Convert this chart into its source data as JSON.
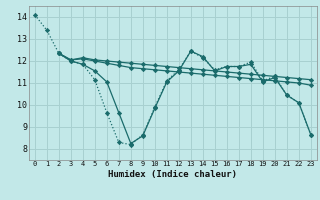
{
  "xlabel": "Humidex (Indice chaleur)",
  "bg_color": "#c2e8e8",
  "grid_color": "#a8d0d0",
  "line_color": "#1a6b6b",
  "xlim": [
    -0.5,
    23.5
  ],
  "ylim": [
    7.5,
    14.5
  ],
  "xticks": [
    0,
    1,
    2,
    3,
    4,
    5,
    6,
    7,
    8,
    9,
    10,
    11,
    12,
    13,
    14,
    15,
    16,
    17,
    18,
    19,
    20,
    21,
    22,
    23
  ],
  "yticks": [
    8,
    9,
    10,
    11,
    12,
    13,
    14
  ],
  "lines": [
    {
      "x": [
        0,
        1,
        2,
        3,
        4,
        5,
        6,
        7,
        8,
        9,
        10,
        11,
        12,
        13,
        14,
        15,
        16,
        17,
        18,
        19,
        20,
        21,
        22,
        23
      ],
      "y": [
        14.1,
        13.4,
        12.35,
        12.0,
        11.85,
        11.15,
        9.65,
        8.3,
        8.2,
        8.65,
        9.9,
        11.1,
        11.6,
        12.45,
        12.15,
        11.6,
        11.75,
        11.75,
        11.95,
        11.1,
        11.3,
        10.45,
        10.1,
        8.65
      ],
      "style": "dotted",
      "marker": true
    },
    {
      "x": [
        2,
        3,
        4,
        5,
        6,
        7,
        8,
        9,
        10,
        11,
        12,
        13,
        14,
        15,
        16,
        17,
        18,
        19,
        20,
        21,
        22,
        23
      ],
      "y": [
        12.35,
        12.0,
        11.85,
        11.55,
        11.05,
        9.65,
        8.25,
        8.6,
        9.85,
        11.05,
        11.55,
        12.45,
        12.2,
        11.55,
        11.75,
        11.75,
        11.85,
        11.05,
        11.25,
        10.45,
        10.1,
        8.65
      ],
      "style": "solid",
      "marker": true
    },
    {
      "x": [
        2,
        3,
        4,
        5,
        6,
        7,
        8,
        9,
        10,
        11,
        12,
        13,
        14,
        15,
        16,
        17,
        18,
        19,
        20,
        21,
        22,
        23
      ],
      "y": [
        12.35,
        12.05,
        12.1,
        12.0,
        11.9,
        11.8,
        11.7,
        11.65,
        11.6,
        11.55,
        11.5,
        11.45,
        11.4,
        11.35,
        11.3,
        11.25,
        11.2,
        11.15,
        11.1,
        11.05,
        11.0,
        10.9
      ],
      "style": "solid",
      "marker": true
    },
    {
      "x": [
        2,
        3,
        4,
        5,
        6,
        7,
        8,
        9,
        10,
        11,
        12,
        13,
        14,
        15,
        16,
        17,
        18,
        19,
        20,
        21,
        22,
        23
      ],
      "y": [
        12.35,
        12.05,
        12.15,
        12.05,
        12.0,
        11.95,
        11.9,
        11.85,
        11.8,
        11.75,
        11.7,
        11.65,
        11.6,
        11.55,
        11.5,
        11.45,
        11.4,
        11.35,
        11.3,
        11.25,
        11.2,
        11.15
      ],
      "style": "solid",
      "marker": true
    }
  ]
}
